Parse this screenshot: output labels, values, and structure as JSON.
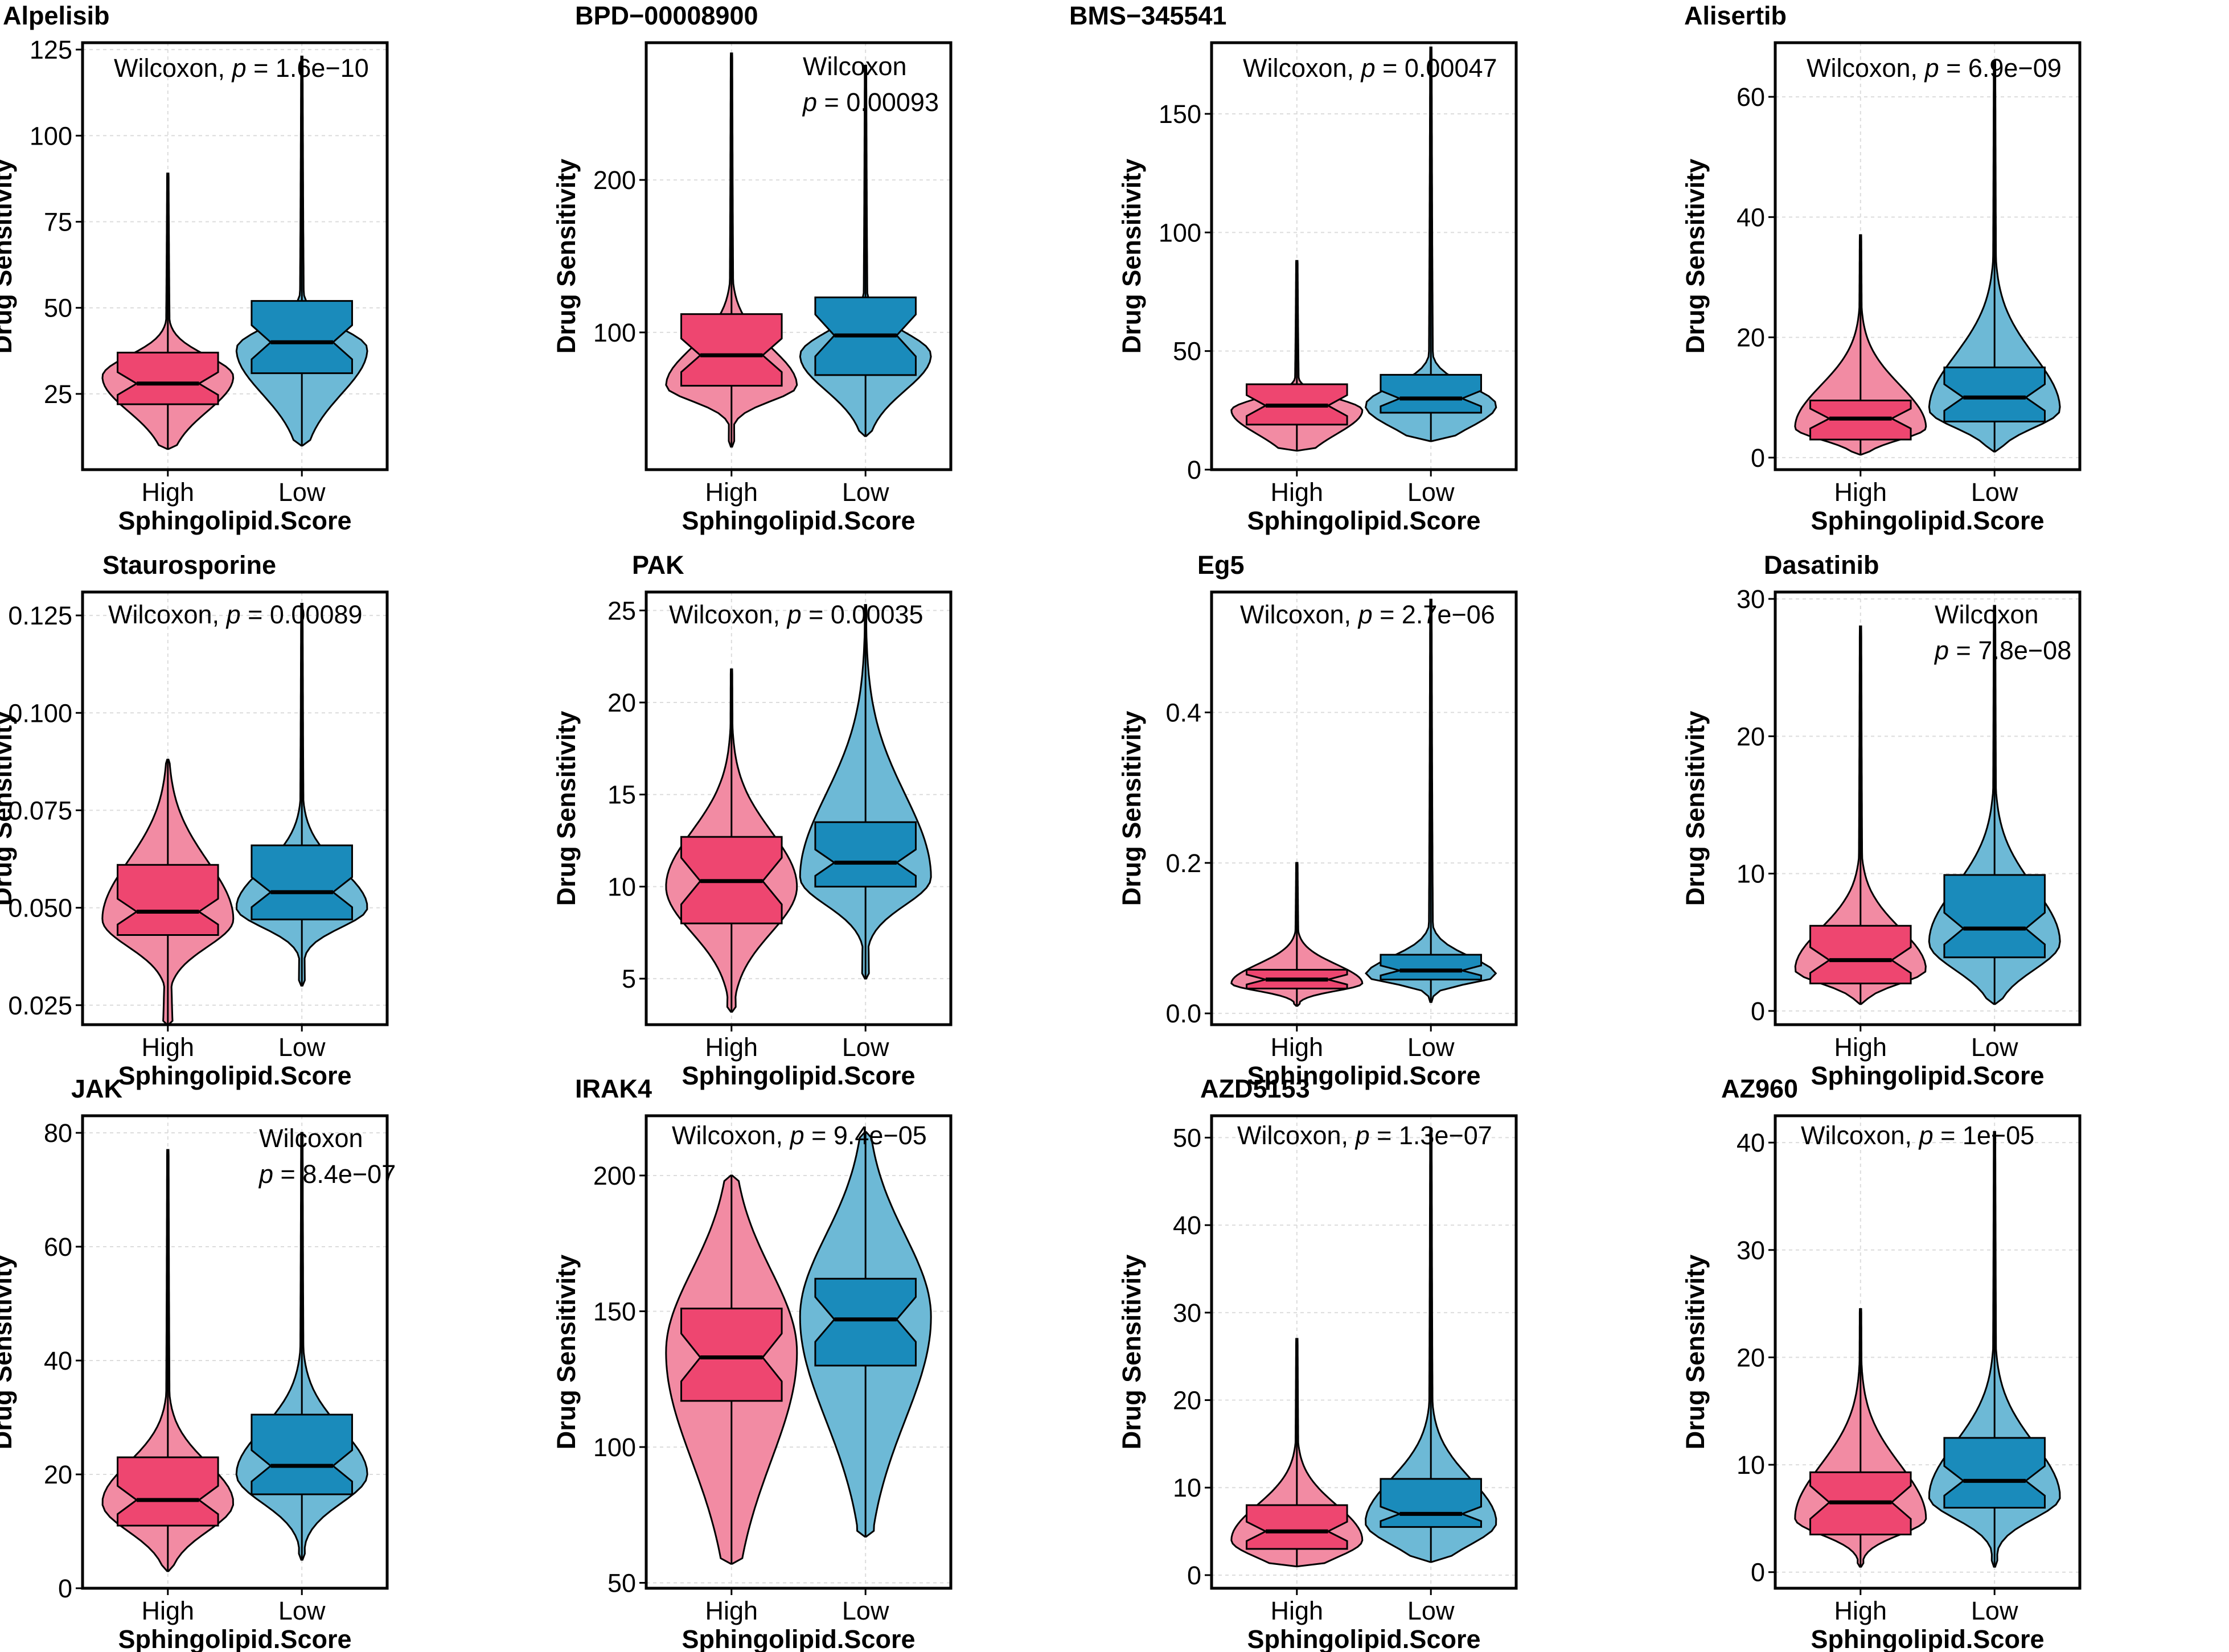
{
  "colors": {
    "high_violin": "#f28ba3",
    "high_box": "#ee4670",
    "low_violin": "#6db9d6",
    "low_box": "#1a8bbb",
    "outline": "#000000",
    "grid": "#dcdcdc"
  },
  "chart_data": [
    {
      "type": "violin-box",
      "title": "Alpelisib",
      "xlabel": "Sphingolipid.Score",
      "ylabel": "Drug Sensitivity",
      "categories": [
        "High",
        "Low"
      ],
      "annotation": [
        "Wilcoxon, ",
        "p",
        " = 1.6e−10"
      ],
      "ylim": [
        3,
        127
      ],
      "yticks": [
        25,
        50,
        75,
        100,
        125
      ],
      "ytick_labels": [
        "25",
        "50",
        "75",
        "100",
        "125"
      ],
      "groups": [
        {
          "min": 9,
          "q1": 22,
          "median": 28,
          "q3": 37,
          "max": 89,
          "lo": 20,
          "hi": 36,
          "peak": 30
        },
        {
          "min": 10,
          "q1": 31,
          "median": 40,
          "q3": 52,
          "max": 123,
          "lo": 25,
          "hi": 44,
          "peak": 38
        }
      ]
    },
    {
      "type": "violin-box",
      "title": "BPD−00008900",
      "xlabel": "Sphingolipid.Score",
      "ylabel": "Drug Sensitivity",
      "categories": [
        "High",
        "Low"
      ],
      "annotation": [
        "Wilcoxon",
        "p",
        " = 0.00093"
      ],
      "ylim": [
        10,
        290
      ],
      "yticks": [
        100,
        200
      ],
      "ytick_labels": [
        "100",
        "200"
      ],
      "groups": [
        {
          "min": 25,
          "q1": 65,
          "median": 85,
          "q3": 112,
          "max": 283,
          "lo": 55,
          "hi": 90,
          "peak": 65
        },
        {
          "min": 32,
          "q1": 72,
          "median": 98,
          "q3": 123,
          "max": 275,
          "lo": 62,
          "hi": 100,
          "peak": 85
        }
      ]
    },
    {
      "type": "violin-box",
      "title": "BMS−345541",
      "xlabel": "Sphingolipid.Score",
      "ylabel": "Drug Sensitivity",
      "categories": [
        "High",
        "Low"
      ],
      "annotation": [
        "Wilcoxon, ",
        "p",
        " = 0.00047"
      ],
      "ylim": [
        0,
        180
      ],
      "yticks": [
        0,
        50,
        100,
        150
      ],
      "ytick_labels": [
        "0",
        "50",
        "100",
        "150"
      ],
      "groups": [
        {
          "min": 8,
          "q1": 19,
          "median": 27,
          "q3": 36,
          "max": 88,
          "lo": 15,
          "hi": 30,
          "peak": 25
        },
        {
          "min": 12,
          "q1": 24,
          "median": 30,
          "q3": 40,
          "max": 178,
          "lo": 18,
          "hi": 35,
          "peak": 27
        }
      ]
    },
    {
      "type": "violin-box",
      "title": "Alisertib",
      "xlabel": "Sphingolipid.Score",
      "ylabel": "Drug Sensitivity",
      "categories": [
        "High",
        "Low"
      ],
      "annotation": [
        "Wilcoxon, ",
        "p",
        " = 6.9e−09"
      ],
      "ylim": [
        -2,
        69
      ],
      "yticks": [
        0,
        20,
        40,
        60
      ],
      "ytick_labels": [
        "0",
        "20",
        "40",
        "60"
      ],
      "groups": [
        {
          "min": 0.5,
          "q1": 3,
          "median": 6.5,
          "q3": 9.5,
          "max": 37,
          "lo": 3,
          "hi": 12,
          "peak": 5
        },
        {
          "min": 1,
          "q1": 6,
          "median": 10,
          "q3": 15,
          "max": 66,
          "lo": 5,
          "hi": 17,
          "peak": 8
        }
      ]
    },
    {
      "type": "violin-box",
      "title": "Staurosporine",
      "xlabel": "Sphingolipid.Score",
      "ylabel": "Drug Sensitivity",
      "categories": [
        "High",
        "Low"
      ],
      "annotation": [
        "Wilcoxon, ",
        "p",
        " = 0.00089"
      ],
      "ylim": [
        0.02,
        0.131
      ],
      "yticks": [
        0.025,
        0.05,
        0.075,
        0.1,
        0.125
      ],
      "ytick_labels": [
        "0.025",
        "0.050",
        "0.075",
        "0.100",
        "0.125"
      ],
      "groups": [
        {
          "min": 0.02,
          "q1": 0.043,
          "median": 0.049,
          "q3": 0.061,
          "max": 0.088,
          "lo": 0.04,
          "hi": 0.062,
          "peak": 0.047
        },
        {
          "min": 0.03,
          "q1": 0.047,
          "median": 0.054,
          "q3": 0.066,
          "max": 0.128,
          "lo": 0.045,
          "hi": 0.06,
          "peak": 0.05
        }
      ]
    },
    {
      "type": "violin-box",
      "title": "PAK",
      "xlabel": "Sphingolipid.Score",
      "ylabel": "Drug Sensitivity",
      "categories": [
        "High",
        "Low"
      ],
      "annotation": [
        "Wilcoxon, ",
        "p",
        " = 0.00035"
      ],
      "ylim": [
        2.5,
        26
      ],
      "yticks": [
        5,
        10,
        15,
        20,
        25
      ],
      "ytick_labels": [
        "5",
        "10",
        "15",
        "20",
        "25"
      ],
      "groups": [
        {
          "min": 3.2,
          "q1": 8,
          "median": 10.3,
          "q3": 12.7,
          "max": 21.8,
          "lo": 7.5,
          "hi": 13,
          "peak": 10
        },
        {
          "min": 5,
          "q1": 10,
          "median": 11.3,
          "q3": 13.5,
          "max": 25.3,
          "lo": 9,
          "hi": 15,
          "peak": 10.5
        }
      ]
    },
    {
      "type": "violin-box",
      "title": "Eg5",
      "xlabel": "Sphingolipid.Score",
      "ylabel": "Drug Sensitivity",
      "categories": [
        "High",
        "Low"
      ],
      "annotation": [
        "Wilcoxon, ",
        "p",
        " = 2.7e−06"
      ],
      "ylim": [
        -0.015,
        0.56
      ],
      "yticks": [
        0,
        0.2,
        0.4
      ],
      "ytick_labels": [
        "0.0",
        "0.2",
        "0.4"
      ],
      "groups": [
        {
          "min": 0.01,
          "q1": 0.033,
          "median": 0.045,
          "q3": 0.058,
          "max": 0.2,
          "lo": 0.03,
          "hi": 0.065,
          "peak": 0.04
        },
        {
          "min": 0.015,
          "q1": 0.045,
          "median": 0.057,
          "q3": 0.078,
          "max": 0.55,
          "lo": 0.04,
          "hi": 0.075,
          "peak": 0.05
        }
      ]
    },
    {
      "type": "violin-box",
      "title": "Dasatinib",
      "xlabel": "Sphingolipid.Score",
      "ylabel": "Drug Sensitivity",
      "categories": [
        "High",
        "Low"
      ],
      "annotation": [
        "Wilcoxon",
        "p",
        " = 7.8e−08"
      ],
      "ylim": [
        -1,
        30.5
      ],
      "yticks": [
        0,
        10,
        20,
        30
      ],
      "ytick_labels": [
        "0",
        "10",
        "20",
        "30"
      ],
      "groups": [
        {
          "min": 0.5,
          "q1": 2,
          "median": 3.7,
          "q3": 6.2,
          "max": 28,
          "lo": 2,
          "hi": 6,
          "peak": 3
        },
        {
          "min": 0.5,
          "q1": 3.9,
          "median": 6,
          "q3": 9.9,
          "max": 29.5,
          "lo": 3,
          "hi": 9,
          "peak": 5
        }
      ]
    },
    {
      "type": "violin-box",
      "title": "JAK",
      "xlabel": "Sphingolipid.Score",
      "ylabel": "Drug Sensitivity",
      "categories": [
        "High",
        "Low"
      ],
      "annotation": [
        "Wilcoxon",
        "p",
        " = 8.4e−07"
      ],
      "ylim": [
        0,
        83
      ],
      "yticks": [
        0,
        20,
        40,
        60,
        80
      ],
      "ytick_labels": [
        "0",
        "20",
        "40",
        "60",
        "80"
      ],
      "groups": [
        {
          "min": 3,
          "q1": 11,
          "median": 15.5,
          "q3": 23,
          "max": 77,
          "lo": 10,
          "hi": 22,
          "peak": 15
        },
        {
          "min": 5,
          "q1": 16.5,
          "median": 21.5,
          "q3": 30.5,
          "max": 80,
          "lo": 15,
          "hi": 28,
          "peak": 20
        }
      ]
    },
    {
      "type": "violin-box",
      "title": "IRAK4",
      "xlabel": "Sphingolipid.Score",
      "ylabel": "Drug Sensitivity",
      "categories": [
        "High",
        "Low"
      ],
      "annotation": [
        "Wilcoxon, ",
        "p",
        " = 9.4e−05"
      ],
      "ylim": [
        48,
        222
      ],
      "yticks": [
        50,
        100,
        150,
        200
      ],
      "ytick_labels": [
        "50",
        "100",
        "150",
        "200"
      ],
      "groups": [
        {
          "min": 57,
          "q1": 117,
          "median": 133,
          "q3": 151,
          "max": 200,
          "lo": 95,
          "hi": 165,
          "peak": 135
        },
        {
          "min": 67,
          "q1": 130,
          "median": 147,
          "q3": 162,
          "max": 216,
          "lo": 110,
          "hi": 178,
          "peak": 148
        }
      ]
    },
    {
      "type": "violin-box",
      "title": "AZD5153",
      "xlabel": "Sphingolipid.Score",
      "ylabel": "Drug Sensitivity",
      "categories": [
        "High",
        "Low"
      ],
      "annotation": [
        "Wilcoxon, ",
        "p",
        " = 1.3e−07"
      ],
      "ylim": [
        -1.5,
        52.5
      ],
      "yticks": [
        0,
        10,
        20,
        30,
        40,
        50
      ],
      "ytick_labels": [
        "0",
        "10",
        "20",
        "30",
        "40",
        "50"
      ],
      "groups": [
        {
          "min": 1,
          "q1": 3,
          "median": 5,
          "q3": 8,
          "max": 27,
          "lo": 2,
          "hi": 8,
          "peak": 4
        },
        {
          "min": 1.5,
          "q1": 5.5,
          "median": 7,
          "q3": 11,
          "max": 51,
          "lo": 3.5,
          "hi": 11,
          "peak": 6
        }
      ]
    },
    {
      "type": "violin-box",
      "title": "AZ960",
      "xlabel": "Sphingolipid.Score",
      "ylabel": "Drug Sensitivity",
      "categories": [
        "High",
        "Low"
      ],
      "annotation": [
        "Wilcoxon, ",
        "p",
        " = 1e−05"
      ],
      "ylim": [
        -1.5,
        42.5
      ],
      "yticks": [
        0,
        10,
        20,
        30,
        40
      ],
      "ytick_labels": [
        "0",
        "10",
        "20",
        "30",
        "40"
      ],
      "groups": [
        {
          "min": 0.5,
          "q1": 3.5,
          "median": 6.5,
          "q3": 9.3,
          "max": 24.5,
          "lo": 3.5,
          "hi": 10,
          "peak": 5
        },
        {
          "min": 0.5,
          "q1": 6,
          "median": 8.5,
          "q3": 12.5,
          "max": 41,
          "lo": 5,
          "hi": 12,
          "peak": 7
        }
      ]
    }
  ]
}
